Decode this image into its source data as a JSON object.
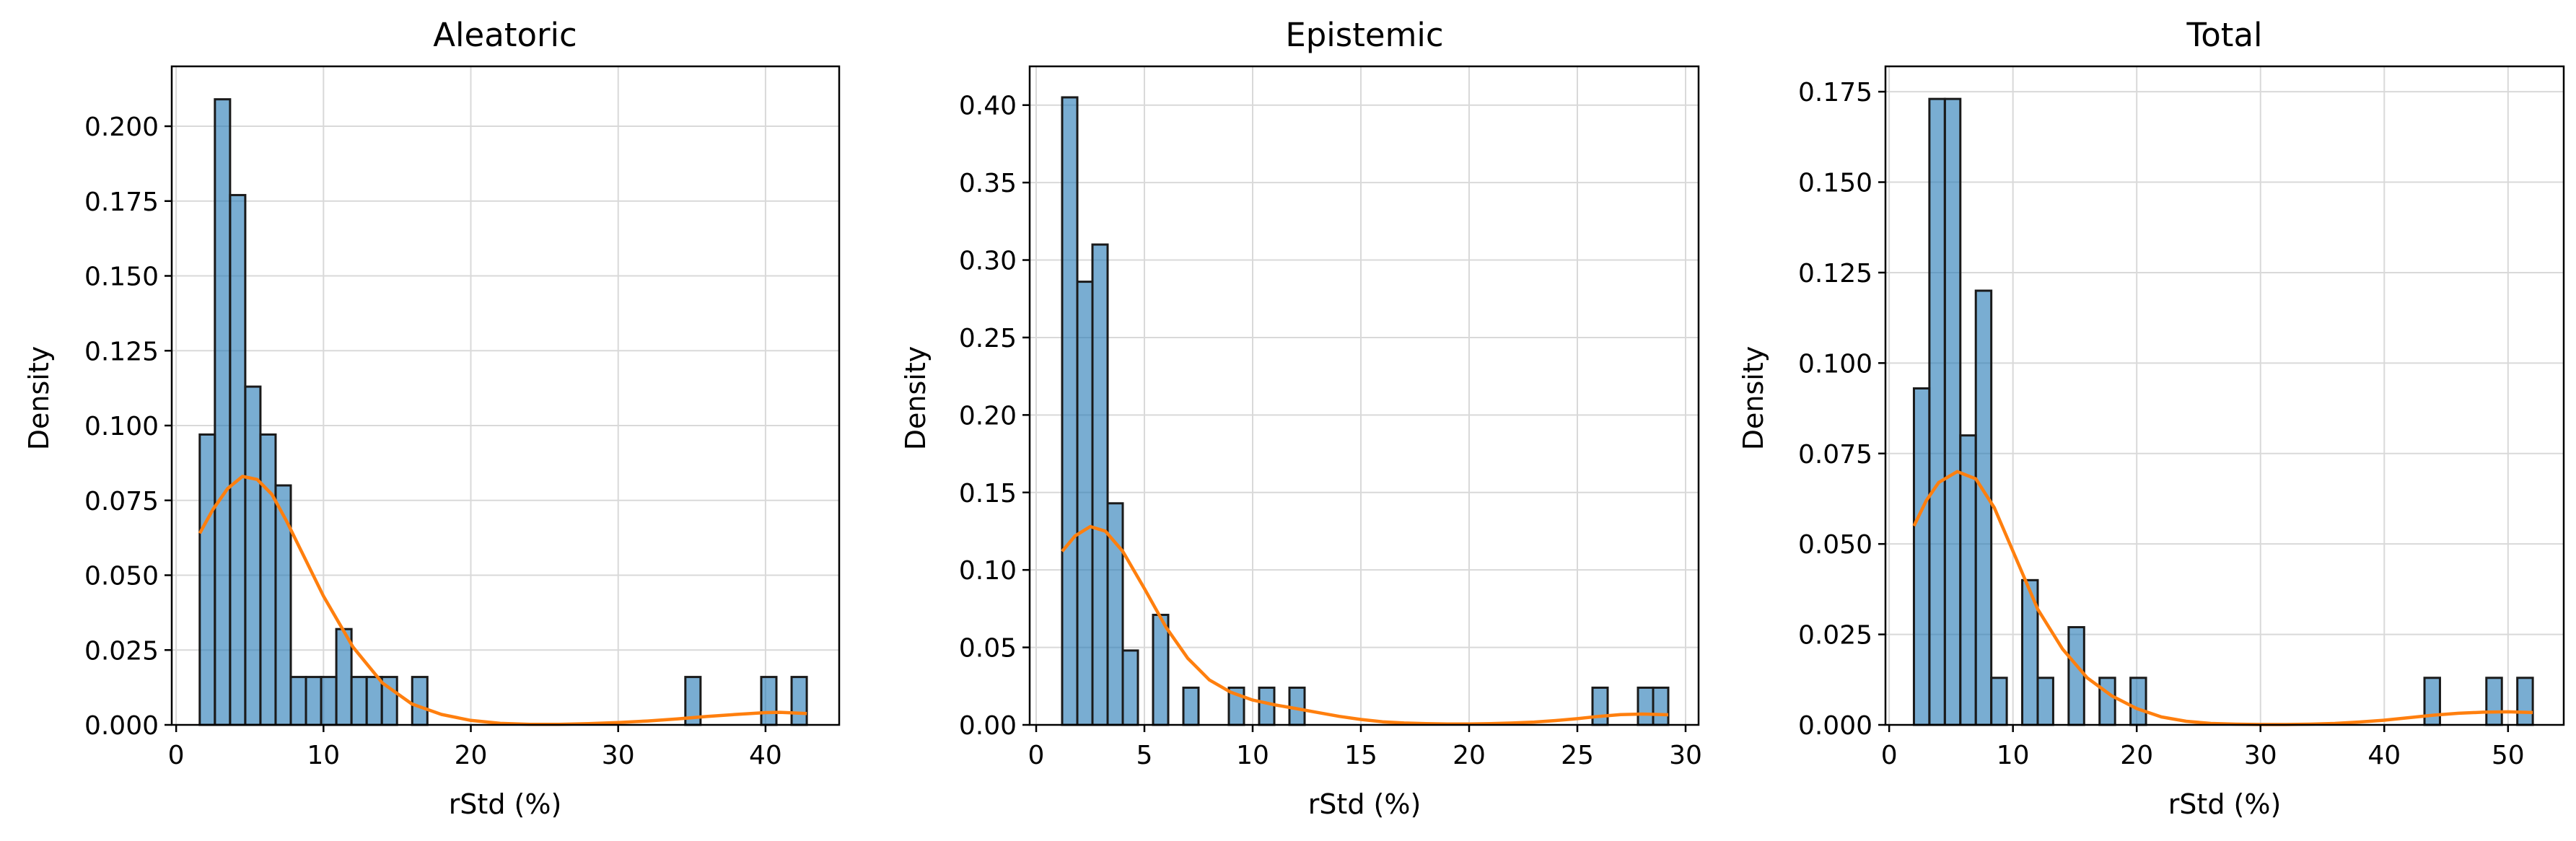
{
  "colors": {
    "bar_fill": "#1f77b4",
    "bar_stroke": "#1a1a1a",
    "kde_line": "#ff7f0e",
    "grid": "#d9d9d9"
  },
  "chart_data": [
    {
      "type": "bar",
      "title": "Aleatoric",
      "xlabel": "rStd (%)",
      "ylabel": "Density",
      "xlim": [
        -0.3,
        45
      ],
      "ylim": [
        0,
        0.22
      ],
      "grid": true,
      "xticks": [
        0,
        10,
        20,
        30,
        40
      ],
      "yticks": [
        0.0,
        0.025,
        0.05,
        0.075,
        0.1,
        0.125,
        0.15,
        0.175,
        0.2
      ],
      "bin_edges": [
        1.6,
        2.63,
        3.66,
        4.69,
        5.72,
        6.75,
        7.78,
        8.81,
        9.84,
        10.87,
        11.9,
        12.93,
        13.96,
        14.99,
        16.02,
        17.05,
        18.08,
        19.11,
        20.14,
        21.17,
        22.2,
        23.23,
        24.26,
        25.29,
        26.32,
        27.35,
        28.38,
        29.41,
        30.44,
        31.47,
        32.5,
        33.53,
        34.56,
        35.59,
        36.62,
        37.65,
        38.68,
        39.71,
        40.74,
        41.77,
        42.8
      ],
      "values": [
        0.097,
        0.209,
        0.177,
        0.113,
        0.097,
        0.08,
        0.016,
        0.016,
        0.016,
        0.032,
        0.016,
        0.016,
        0.016,
        0,
        0.016,
        0,
        0,
        0,
        0,
        0,
        0,
        0,
        0,
        0,
        0,
        0,
        0,
        0,
        0,
        0,
        0,
        0,
        0.016,
        0,
        0,
        0,
        0,
        0.016,
        0,
        0.016
      ],
      "kde": {
        "x": [
          1.6,
          2.5,
          3.5,
          4.5,
          5.5,
          6.5,
          7.5,
          8.5,
          10,
          12,
          14,
          16,
          18,
          20,
          22,
          24,
          26,
          28,
          30,
          32,
          34,
          36,
          38,
          40,
          41,
          42.8
        ],
        "y": [
          0.064,
          0.072,
          0.079,
          0.083,
          0.082,
          0.077,
          0.068,
          0.058,
          0.043,
          0.026,
          0.014,
          0.007,
          0.0035,
          0.0015,
          0.0005,
          0.0002,
          0.0002,
          0.0004,
          0.0008,
          0.0013,
          0.002,
          0.0028,
          0.0035,
          0.0041,
          0.0042,
          0.0038
        ]
      }
    },
    {
      "type": "bar",
      "title": "Epistemic",
      "xlabel": "rStd (%)",
      "ylabel": "Density",
      "xlim": [
        -0.3,
        30.6
      ],
      "ylim": [
        0,
        0.425
      ],
      "grid": true,
      "xticks": [
        0,
        5,
        10,
        15,
        20,
        25,
        30
      ],
      "yticks": [
        0.0,
        0.05,
        0.1,
        0.15,
        0.2,
        0.25,
        0.3,
        0.35,
        0.4
      ],
      "bin_edges": [
        1.2,
        1.9,
        2.6,
        3.3,
        4.0,
        4.7,
        5.4,
        6.1,
        6.8,
        7.5,
        8.2,
        8.9,
        9.6,
        10.3,
        11.0,
        11.7,
        12.4,
        13.1,
        13.8,
        14.5,
        15.2,
        15.9,
        16.6,
        17.3,
        18.0,
        18.7,
        19.4,
        20.1,
        20.8,
        21.5,
        22.2,
        22.9,
        23.6,
        24.3,
        25.0,
        25.7,
        26.4,
        27.1,
        27.8,
        28.5,
        29.2
      ],
      "values": [
        0.405,
        0.286,
        0.31,
        0.143,
        0.048,
        0,
        0.071,
        0,
        0.024,
        0,
        0,
        0.024,
        0,
        0.024,
        0,
        0.024,
        0,
        0,
        0,
        0,
        0,
        0,
        0,
        0,
        0,
        0,
        0,
        0,
        0,
        0,
        0,
        0,
        0,
        0,
        0,
        0.024,
        0,
        0,
        0.024,
        0.024
      ],
      "kde": {
        "x": [
          1.2,
          1.8,
          2.5,
          3.2,
          4.0,
          5.0,
          6.0,
          7.0,
          8.0,
          9.0,
          10.0,
          11.0,
          12.0,
          13.0,
          14.0,
          15.0,
          16.0,
          17.0,
          18.0,
          19.0,
          20.0,
          21.0,
          22.0,
          23.0,
          24.0,
          25.0,
          26.0,
          27.0,
          28.0,
          29.2
        ],
        "y": [
          0.112,
          0.122,
          0.128,
          0.125,
          0.112,
          0.088,
          0.063,
          0.043,
          0.029,
          0.021,
          0.016,
          0.013,
          0.0105,
          0.008,
          0.0055,
          0.0035,
          0.002,
          0.0012,
          0.0008,
          0.0006,
          0.0006,
          0.0008,
          0.0012,
          0.0018,
          0.0028,
          0.004,
          0.0055,
          0.0066,
          0.007,
          0.0065
        ]
      }
    },
    {
      "type": "bar",
      "title": "Total",
      "xlabel": "rStd (%)",
      "ylabel": "Density",
      "xlim": [
        -0.3,
        54.5
      ],
      "ylim": [
        0,
        0.182
      ],
      "grid": true,
      "xticks": [
        0,
        10,
        20,
        30,
        40,
        50
      ],
      "yticks": [
        0.0,
        0.025,
        0.05,
        0.075,
        0.1,
        0.125,
        0.15,
        0.175
      ],
      "bin_edges": [
        2.0,
        3.25,
        4.5,
        5.75,
        7.0,
        8.25,
        9.5,
        10.75,
        12.0,
        13.25,
        14.5,
        15.75,
        17.0,
        18.25,
        19.5,
        20.75,
        22.0,
        23.25,
        24.5,
        25.75,
        27.0,
        28.25,
        29.5,
        30.75,
        32.0,
        33.25,
        34.5,
        35.75,
        37.0,
        38.25,
        39.5,
        40.75,
        42.0,
        43.25,
        44.5,
        45.75,
        47.0,
        48.25,
        49.5,
        50.75,
        52.0
      ],
      "values": [
        0.093,
        0.173,
        0.173,
        0.08,
        0.12,
        0.013,
        0,
        0.04,
        0.013,
        0,
        0.027,
        0,
        0.013,
        0,
        0.013,
        0,
        0,
        0,
        0,
        0,
        0,
        0,
        0,
        0,
        0,
        0,
        0,
        0,
        0,
        0,
        0,
        0,
        0,
        0.013,
        0,
        0,
        0,
        0.013,
        0,
        0.013
      ],
      "kde": {
        "x": [
          2.0,
          3.0,
          4.0,
          5.5,
          7.0,
          8.5,
          10.0,
          12.0,
          14.0,
          16.0,
          18.0,
          20.0,
          22.0,
          24.0,
          26.0,
          28.0,
          30.0,
          32.0,
          34.0,
          36.0,
          38.0,
          40.0,
          42.0,
          44.0,
          46.0,
          48.0,
          50.0,
          52.0
        ],
        "y": [
          0.055,
          0.062,
          0.067,
          0.07,
          0.068,
          0.06,
          0.048,
          0.032,
          0.021,
          0.013,
          0.008,
          0.0045,
          0.0022,
          0.001,
          0.0004,
          0.0002,
          0.0001,
          0.0001,
          0.0002,
          0.0004,
          0.0008,
          0.0013,
          0.002,
          0.0027,
          0.0032,
          0.0035,
          0.0036,
          0.0034
        ]
      }
    }
  ]
}
